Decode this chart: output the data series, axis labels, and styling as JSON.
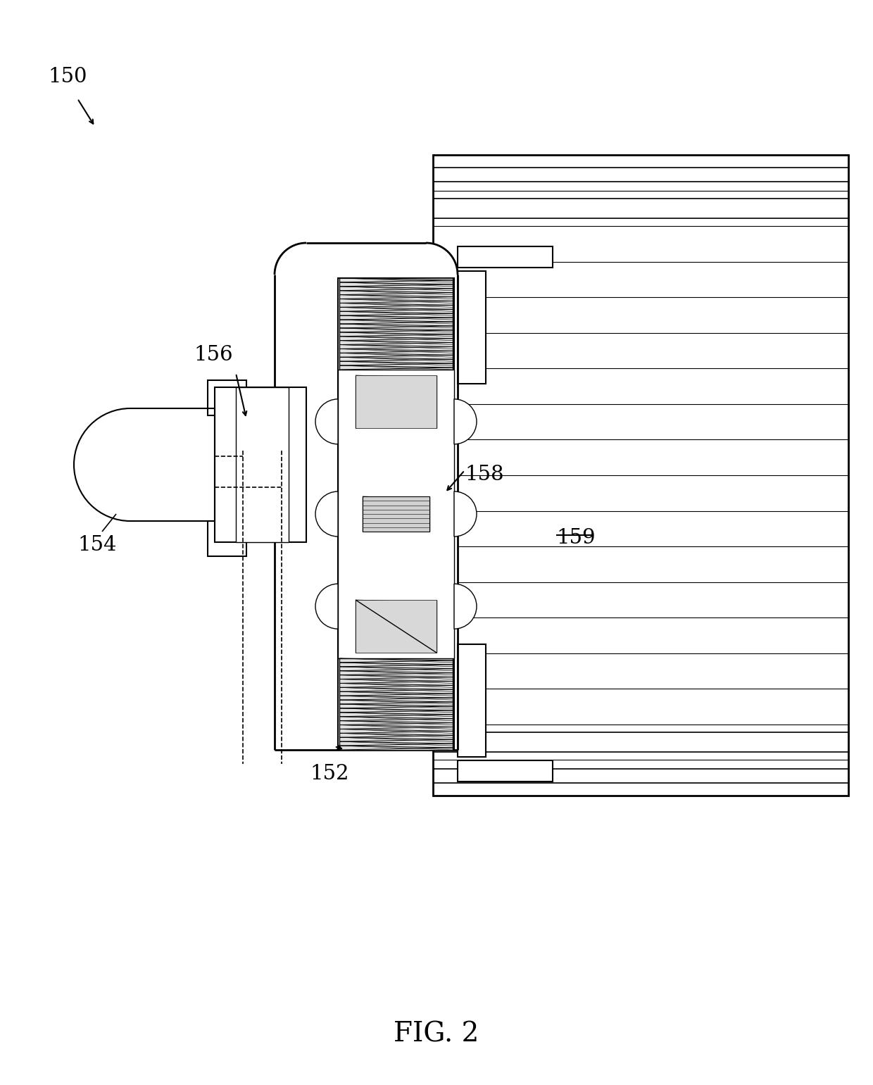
{
  "title": "FIG. 2",
  "label_150": "150",
  "label_152": "152",
  "label_154": "154",
  "label_156": "156",
  "label_158": "158",
  "label_159": "159",
  "bg_color": "#ffffff",
  "line_color": "#000000",
  "fig_width": 12.4,
  "fig_height": 15.41
}
